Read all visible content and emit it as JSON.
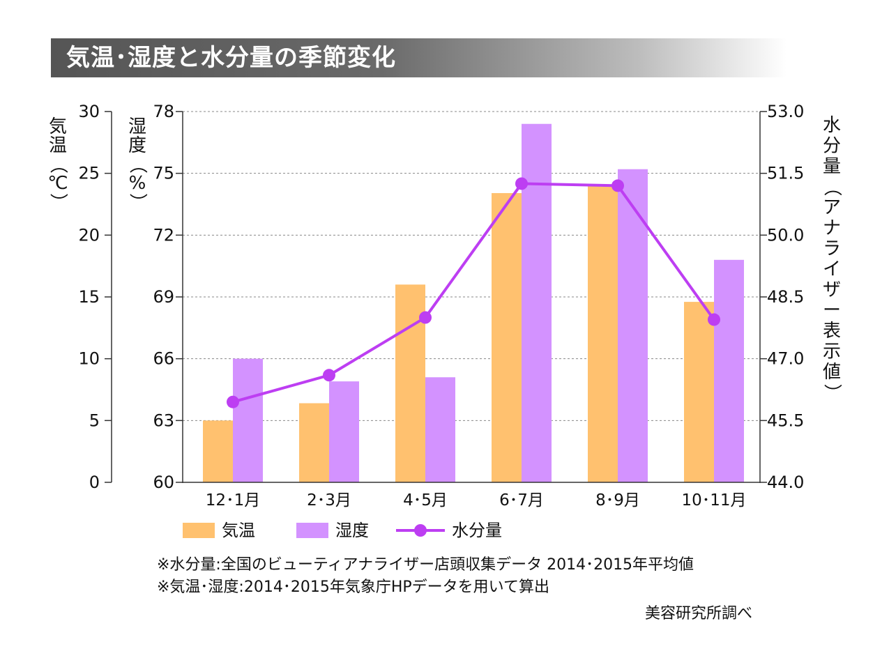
{
  "title": "気温･湿度と水分量の季節変化",
  "notes": [
    "※水分量:全国のビューティアナライザー店頭収集データ 2014･2015年平均値",
    "※気温･湿度:2014･2015年気象庁HPデータを用いて算出"
  ],
  "credit": "美容研究所調べ",
  "colors": {
    "temperature": "#ffc16f",
    "humidity": "#d392ff",
    "moisture": "#bd3ef2",
    "grid": "#888888",
    "axis": "#333333"
  },
  "chart_data": {
    "type": "bar",
    "categories": [
      "12･1月",
      "2･3月",
      "4･5月",
      "6･7月",
      "8･9月",
      "10･11月"
    ],
    "axes": {
      "temperature": {
        "label_chars": [
          "気",
          "温",
          "（",
          "℃",
          "）"
        ],
        "range": [
          0,
          30
        ],
        "ticks": [
          "0",
          "5",
          "10",
          "15",
          "20",
          "25",
          "30"
        ]
      },
      "humidity": {
        "label_chars": [
          "湿",
          "度",
          "（",
          "%",
          "）"
        ],
        "range": [
          60,
          78
        ],
        "ticks": [
          "60",
          "63",
          "66",
          "69",
          "72",
          "75",
          "78"
        ]
      },
      "moisture": {
        "label_chars": [
          "水",
          "分",
          "量",
          "（",
          "ア",
          "ナ",
          "ラ",
          "イ",
          "ザ",
          "ー",
          "表",
          "示",
          "値",
          "）"
        ],
        "range": [
          44.0,
          53.0
        ],
        "ticks": [
          "44.0",
          "45.5",
          "47.0",
          "48.5",
          "50.0",
          "51.5",
          "53.0"
        ]
      }
    },
    "series": [
      {
        "name": "気温",
        "type": "bar",
        "axis": "temperature",
        "values": [
          5.0,
          6.4,
          16.0,
          23.4,
          24.1,
          14.6
        ]
      },
      {
        "name": "湿度",
        "type": "bar",
        "axis": "humidity",
        "values": [
          66.0,
          64.9,
          65.1,
          77.4,
          75.2,
          70.8
        ]
      },
      {
        "name": "水分量",
        "type": "line",
        "axis": "moisture",
        "values": [
          45.95,
          46.6,
          48.0,
          51.25,
          51.2,
          47.95
        ]
      }
    ],
    "grid": true,
    "legend": "bottom"
  }
}
